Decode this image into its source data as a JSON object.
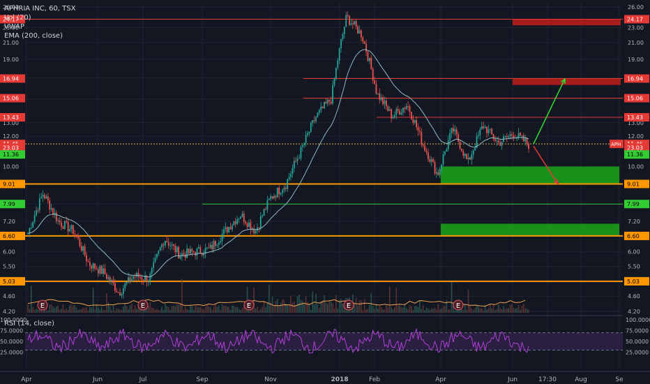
{
  "legend": {
    "symbol": "APHRIA INC, 60, TSX",
    "vol": "Vol (20)",
    "vwap": "VWAP",
    "ema": "EMA (200, close)"
  },
  "rsi_legend": "RSI (14, close)",
  "colors": {
    "background": "#131722",
    "grid": "#1e2330",
    "up": "#26a69a",
    "down": "#ef5350",
    "ema": "#8fb9c8",
    "resistance_line": "#e53935",
    "support_line_orange": "#ff9800",
    "support_line_green": "#33cc33",
    "red_zone": "#b71c1c",
    "green_zone": "#1a9e1a",
    "rsi_line": "#b040d8",
    "rsi_band": "#2a1f40",
    "volume": "#3d5b56"
  },
  "price_axis": {
    "ticks": [
      "26.00",
      "23.00",
      "21.00",
      "19.00",
      "17.00",
      "15.00",
      "13.00",
      "12.00",
      "10.00",
      "9.00",
      "8.00",
      "7.20",
      "6.60",
      "6.00",
      "5.50",
      "5.00",
      "4.60",
      "4.20"
    ],
    "markers": [
      {
        "label": "24.17",
        "color": "#e53935",
        "text": "#ffffff"
      },
      {
        "label": "16.94",
        "color": "#e53935",
        "text": "#ffffff"
      },
      {
        "label": "15.06",
        "color": "#e53935",
        "text": "#ffffff"
      },
      {
        "label": "13.43",
        "color": "#e53935",
        "text": "#ffffff"
      },
      {
        "label": "11.45",
        "color": "#e53935",
        "text": "#ffffff"
      },
      {
        "label": "23.03",
        "color": "#e53935",
        "text": "#ffffff"
      },
      {
        "label": "11.36",
        "color": "#33cc33",
        "text": "#000000"
      },
      {
        "label": "9.01",
        "color": "#ff9800",
        "text": "#000000"
      },
      {
        "label": "7.99",
        "color": "#33cc33",
        "text": "#000000"
      },
      {
        "label": "6.60",
        "color": "#ff9800",
        "text": "#000000"
      },
      {
        "label": "5.03",
        "color": "#ff9800",
        "text": "#000000"
      }
    ],
    "ticker_tag": "APH"
  },
  "rsi_axis": {
    "ticks": [
      "100.0000",
      "75.0000",
      "50.0000",
      "25.0000"
    ]
  },
  "time_axis": {
    "ticks": [
      "Apr",
      "Jun",
      "Jul",
      "Sep",
      "Nov",
      "2018",
      "Feb",
      "Apr",
      "Jun",
      "17:30",
      "Aug",
      "Se"
    ]
  },
  "earnings_markers": [
    "E",
    "E",
    "E",
    "E",
    "E"
  ],
  "chart_data": {
    "type": "candlestick",
    "title": "APHRIA INC, 60, TSX",
    "y_scale": "log",
    "ylim": [
      4.2,
      26.0
    ],
    "x_labels": [
      "Apr",
      "Jun",
      "Jul",
      "Sep",
      "Nov",
      "2018",
      "Feb",
      "Apr",
      "Jun",
      "17:30",
      "Aug",
      "Se"
    ],
    "close_path": [
      [
        "Apr",
        6.7
      ],
      [
        "Apr",
        8.5
      ],
      [
        "Apr",
        7.2
      ],
      [
        "May",
        6.8
      ],
      [
        "May",
        5.6
      ],
      [
        "Jun",
        5.3
      ],
      [
        "Jun",
        4.7
      ],
      [
        "Jun",
        5.2
      ],
      [
        "Jul",
        5.1
      ],
      [
        "Jul",
        6.5
      ],
      [
        "Aug",
        5.9
      ],
      [
        "Aug",
        6.0
      ],
      [
        "Sep",
        6.1
      ],
      [
        "Sep",
        6.8
      ],
      [
        "Oct",
        7.5
      ],
      [
        "Oct",
        6.8
      ],
      [
        "Oct",
        8.3
      ],
      [
        "Nov",
        9.0
      ],
      [
        "Nov",
        11.0
      ],
      [
        "Dec",
        13.5
      ],
      [
        "Dec",
        15.0
      ],
      [
        "Jan",
        24.5
      ],
      [
        "Jan",
        22.0
      ],
      [
        "Feb",
        15.5
      ],
      [
        "Feb",
        13.5
      ],
      [
        "Mar",
        14.5
      ],
      [
        "Mar",
        11.5
      ],
      [
        "Apr",
        9.5
      ],
      [
        "Apr",
        12.5
      ],
      [
        "Apr",
        10.2
      ],
      [
        "May",
        12.8
      ],
      [
        "May",
        11.5
      ],
      [
        "Jun",
        12.2
      ],
      [
        "Jun",
        11.4
      ]
    ],
    "horizontal_levels": [
      {
        "value": 24.17,
        "style": "resistance"
      },
      {
        "value": 16.94,
        "style": "resistance"
      },
      {
        "value": 15.06,
        "style": "resistance"
      },
      {
        "value": 13.43,
        "style": "resistance"
      },
      {
        "value": 11.45,
        "style": "current"
      },
      {
        "value": 9.01,
        "style": "support"
      },
      {
        "value": 7.99,
        "style": "support-green"
      },
      {
        "value": 6.6,
        "style": "support"
      },
      {
        "value": 5.03,
        "style": "support"
      }
    ],
    "zones": [
      {
        "type": "resistance",
        "from": 23.3,
        "to": 24.17
      },
      {
        "type": "resistance",
        "from": 16.3,
        "to": 16.94
      },
      {
        "type": "support",
        "from": 9.01,
        "to": 10.0
      },
      {
        "type": "support",
        "from": 6.6,
        "to": 7.1
      }
    ],
    "projection_arrows": [
      {
        "direction": "up",
        "from": 11.45,
        "to": 16.9
      },
      {
        "direction": "down",
        "from": 11.3,
        "to": 9.01
      }
    ],
    "rsi": {
      "name": "RSI (14, close)",
      "ylim": [
        0,
        100
      ],
      "band": [
        30,
        70
      ]
    }
  }
}
